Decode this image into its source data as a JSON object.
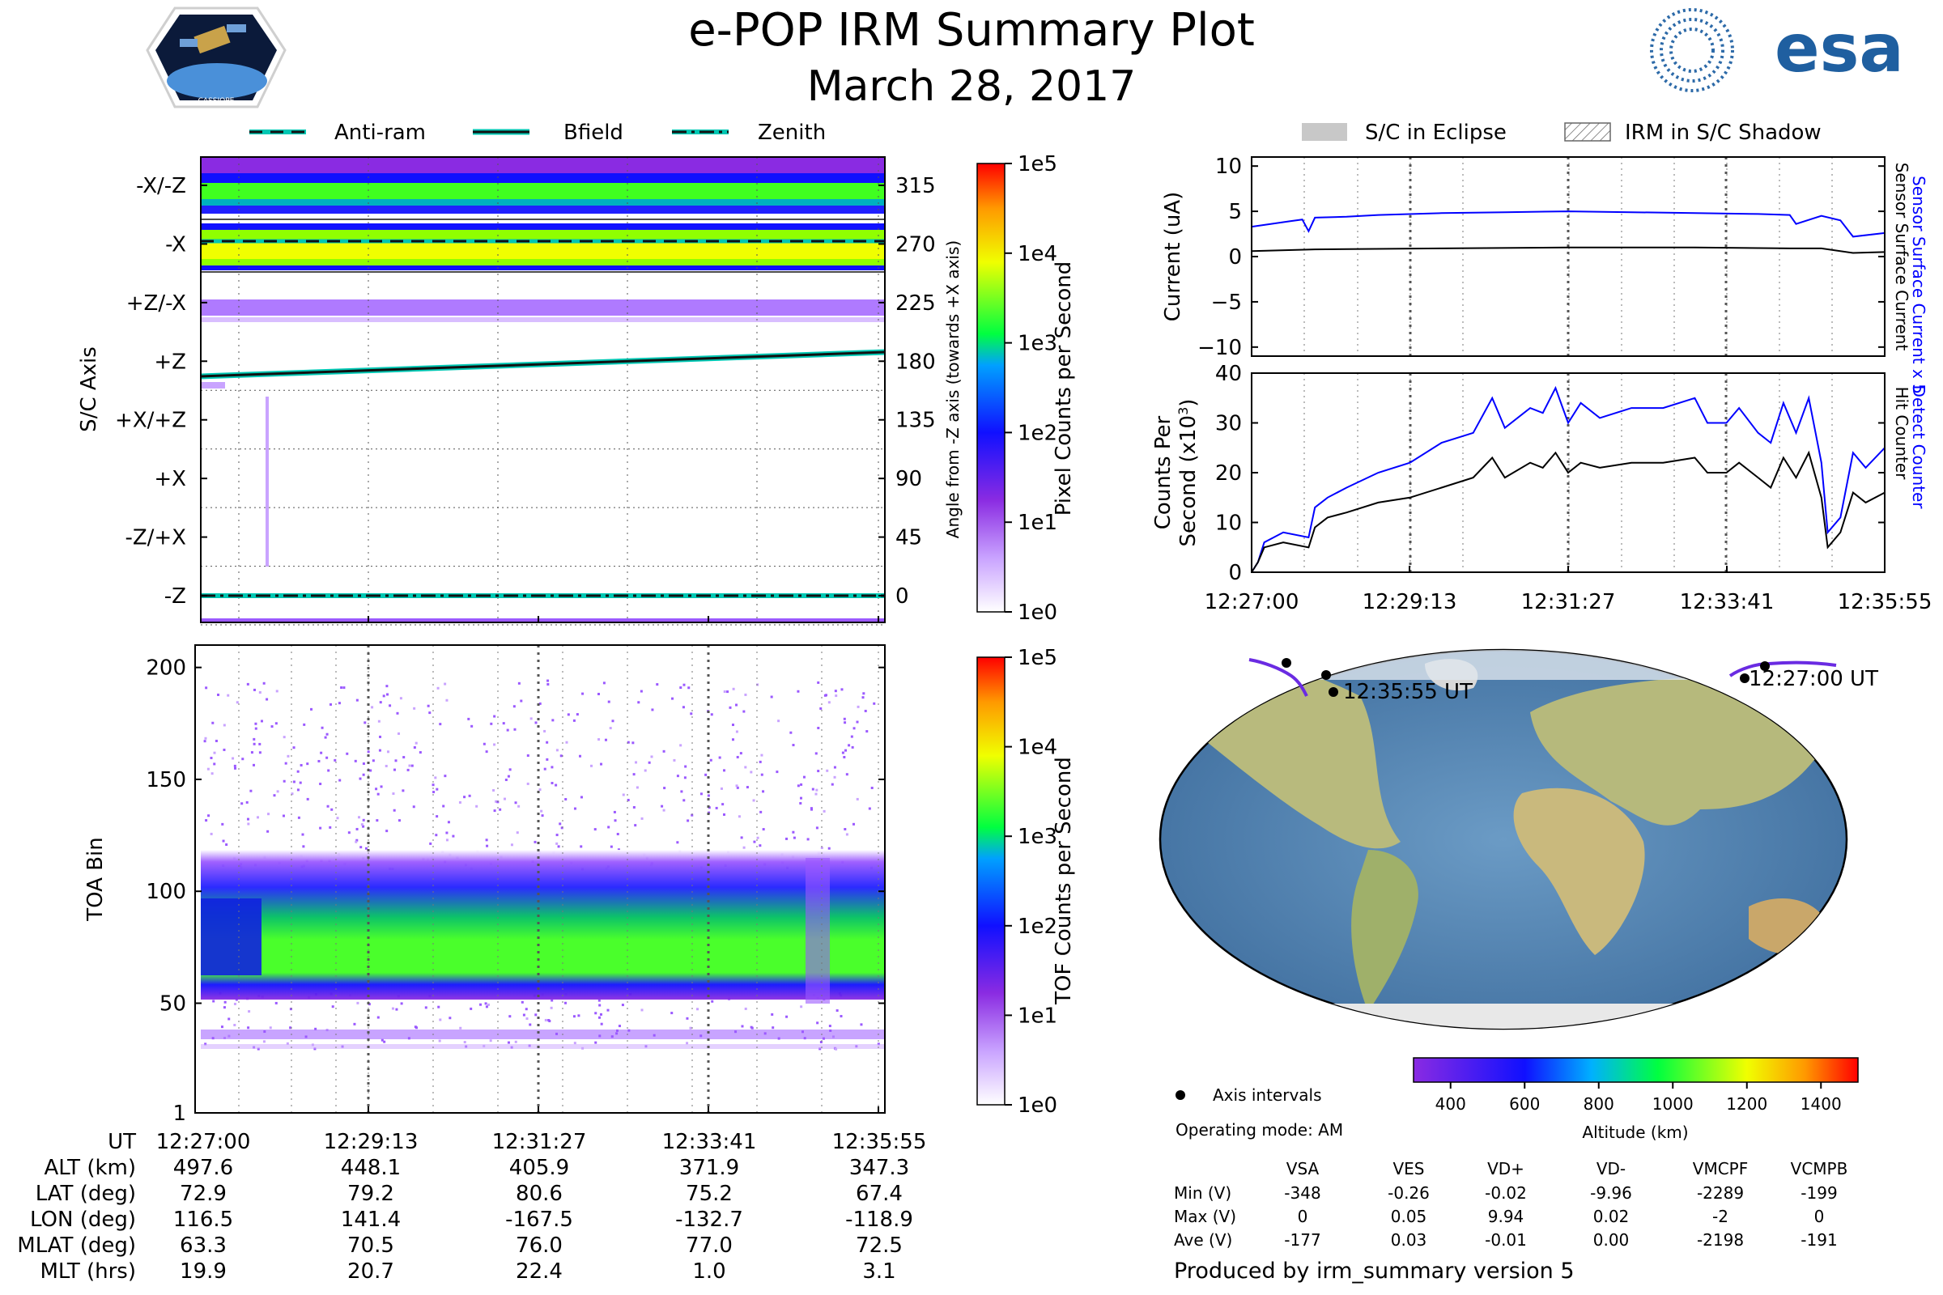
{
  "header": {
    "title": "e-POP IRM Summary Plot",
    "date": "March 28, 2017",
    "cassiope_label": "CASSIOPE",
    "esa_label": "esa"
  },
  "colors": {
    "blue": "#0000ff",
    "bfield": "#00c7b3",
    "eclipse": "#c8c8c8",
    "ocean": "#5d8cb8",
    "land": "#a9b878"
  },
  "legend_top_left": [
    {
      "label": "Anti-ram",
      "style": "dashed"
    },
    {
      "label": "Bfield",
      "style": "solid"
    },
    {
      "label": "Zenith",
      "style": "dashdot"
    }
  ],
  "legend_top_right": [
    {
      "label": "S/C in Eclipse",
      "style": "fill"
    },
    {
      "label": "IRM in S/C Shadow",
      "style": "hatch"
    }
  ],
  "time_ticks": [
    "12:27:00",
    "12:29:13",
    "12:31:27",
    "12:33:41",
    "12:35:55"
  ],
  "chart_data": [
    {
      "type": "heatmap",
      "name": "sc_axis_pixel_counts",
      "ylabel": "S/C Axis",
      "ylabel_right": "Angle from -Z axis (towards +X axis)",
      "y_categories": [
        "-X/-Z",
        "-X",
        "+Z/-X",
        "+Z",
        "+X/+Z",
        "+X",
        "-Z/+X",
        "-Z"
      ],
      "y_angles": [
        "315",
        "270",
        "225",
        "180",
        "135",
        "90",
        "45",
        "0"
      ],
      "colorbar_label": "Pixel Counts per Second",
      "colorbar_ticks": [
        "1e5",
        "1e4",
        "1e3",
        "1e2",
        "1e1",
        "1e0"
      ],
      "lines": {
        "anti_ram_deg": 272,
        "zenith_deg": 0,
        "bfield_deg_start": 168,
        "bfield_deg_end": 188
      }
    },
    {
      "type": "heatmap",
      "name": "toa_counts",
      "ylabel": "TOA Bin",
      "y_ticks": [
        "200",
        "150",
        "100",
        "50",
        "1"
      ],
      "ylim": [
        1,
        210
      ],
      "colorbar_label": "TOF Counts per Second",
      "colorbar_ticks": [
        "1e5",
        "1e4",
        "1e3",
        "1e2",
        "1e1",
        "1e0"
      ],
      "main_band": [
        55,
        110
      ],
      "secondary_band": [
        28,
        37
      ]
    },
    {
      "type": "line",
      "name": "current",
      "ylabel": "Current (uA)",
      "ylim": [
        -11,
        11
      ],
      "y_ticks": [
        "10",
        "5",
        "0",
        "−5",
        "−10"
      ],
      "right_label_blue": "Sensor Surface Current x 5",
      "right_label_black": "Sensor Surface Current",
      "series": [
        {
          "name": "Sensor Surface Current x 5",
          "color": "blue",
          "x": [
            0,
            0.03,
            0.06,
            0.08,
            0.09,
            0.1,
            0.15,
            0.2,
            0.3,
            0.4,
            0.5,
            0.6,
            0.7,
            0.8,
            0.85,
            0.86,
            0.9,
            0.93,
            0.95,
            1.0
          ],
          "values": [
            3.3,
            3.6,
            3.9,
            4.1,
            2.8,
            4.3,
            4.4,
            4.6,
            4.8,
            4.9,
            5.0,
            4.9,
            4.8,
            4.7,
            4.6,
            3.6,
            4.5,
            4.0,
            2.2,
            2.6
          ]
        },
        {
          "name": "Sensor Surface Current",
          "color": "black",
          "x": [
            0,
            0.1,
            0.3,
            0.5,
            0.7,
            0.85,
            0.9,
            0.95,
            1.0
          ],
          "values": [
            0.6,
            0.8,
            0.9,
            1.0,
            1.0,
            0.9,
            0.9,
            0.4,
            0.5
          ]
        }
      ]
    },
    {
      "type": "line",
      "name": "counts",
      "ylabel_line1": "Counts Per",
      "ylabel_line2": "Second (x10",
      "ylabel_sup": "3",
      "ylabel_end": ")",
      "ylim": [
        0,
        40
      ],
      "y_ticks": [
        "40",
        "30",
        "20",
        "10",
        "0"
      ],
      "right_label_blue": "Detect Counter",
      "right_label_black": "Hit Counter",
      "series": [
        {
          "name": "Detect Counter",
          "color": "blue",
          "x": [
            0,
            0.01,
            0.02,
            0.05,
            0.09,
            0.1,
            0.12,
            0.15,
            0.2,
            0.25,
            0.3,
            0.35,
            0.38,
            0.4,
            0.44,
            0.46,
            0.48,
            0.5,
            0.52,
            0.55,
            0.6,
            0.65,
            0.7,
            0.72,
            0.75,
            0.77,
            0.8,
            0.82,
            0.84,
            0.86,
            0.88,
            0.9,
            0.91,
            0.93,
            0.95,
            0.97,
            1.0
          ],
          "values": [
            0,
            2,
            6,
            8,
            7,
            13,
            15,
            17,
            20,
            22,
            26,
            28,
            35,
            29,
            33,
            32,
            37,
            30,
            34,
            31,
            33,
            33,
            35,
            30,
            30,
            33,
            28,
            26,
            34,
            28,
            35,
            22,
            8,
            11,
            24,
            21,
            25
          ]
        },
        {
          "name": "Hit Counter",
          "color": "black",
          "x": [
            0,
            0.01,
            0.02,
            0.05,
            0.09,
            0.1,
            0.12,
            0.15,
            0.2,
            0.25,
            0.3,
            0.35,
            0.38,
            0.4,
            0.44,
            0.46,
            0.48,
            0.5,
            0.52,
            0.55,
            0.6,
            0.65,
            0.7,
            0.72,
            0.75,
            0.77,
            0.8,
            0.82,
            0.84,
            0.86,
            0.88,
            0.9,
            0.91,
            0.93,
            0.95,
            0.97,
            1.0
          ],
          "values": [
            0,
            2,
            5,
            6,
            5,
            9,
            11,
            12,
            14,
            15,
            17,
            19,
            23,
            19,
            22,
            21,
            24,
            20,
            22,
            21,
            22,
            22,
            23,
            20,
            20,
            22,
            19,
            17,
            23,
            19,
            24,
            15,
            5,
            8,
            16,
            14,
            16
          ]
        }
      ]
    },
    {
      "type": "scatter",
      "name": "ground_track",
      "map_projection": "robinson",
      "start_label": "12:27:00 UT",
      "end_label": "12:35:55 UT",
      "track_lonlat": [
        [
          116.5,
          72.9
        ],
        [
          141.4,
          79.2
        ],
        [
          -167.5,
          80.6
        ],
        [
          -132.7,
          75.2
        ],
        [
          -118.9,
          67.4
        ]
      ],
      "legend_label": "Axis intervals",
      "operating_mode": "Operating mode: AM",
      "colorbar_label": "Altitude (km)",
      "colorbar_ticks": [
        "400",
        "600",
        "800",
        "1000",
        "1200",
        "1400"
      ],
      "colorbar_range": [
        300,
        1500
      ]
    }
  ],
  "ephemeris": {
    "rows": [
      {
        "label": "UT",
        "values": [
          "12:27:00",
          "12:29:13",
          "12:31:27",
          "12:33:41",
          "12:35:55"
        ]
      },
      {
        "label": "ALT (km)",
        "values": [
          "497.6",
          "448.1",
          "405.9",
          "371.9",
          "347.3"
        ]
      },
      {
        "label": "LAT (deg)",
        "values": [
          "72.9",
          "79.2",
          "80.6",
          "75.2",
          "67.4"
        ]
      },
      {
        "label": "LON (deg)",
        "values": [
          "116.5",
          "141.4",
          "-167.5",
          "-132.7",
          "-118.9"
        ]
      },
      {
        "label": "MLAT (deg)",
        "values": [
          "63.3",
          "70.5",
          "76.0",
          "77.0",
          "72.5"
        ]
      },
      {
        "label": "MLT (hrs)",
        "values": [
          "19.9",
          "20.7",
          "22.4",
          "1.0",
          "3.1"
        ]
      }
    ]
  },
  "voltage_table": {
    "columns": [
      "VSA",
      "VES",
      "VD+",
      "VD-",
      "VMCPF",
      "VCMPB"
    ],
    "rows": [
      {
        "label": "Min (V)",
        "values": [
          "-348",
          "-0.26",
          "-0.02",
          "-9.96",
          "-2289",
          "-199"
        ]
      },
      {
        "label": "Max (V)",
        "values": [
          "0",
          "0.05",
          "9.94",
          "0.02",
          "-2",
          "0"
        ]
      },
      {
        "label": "Ave (V)",
        "values": [
          "-177",
          "0.03",
          "-0.01",
          "0.00",
          "-2198",
          "-191"
        ]
      }
    ]
  },
  "footer": "Produced by irm_summary version 5"
}
